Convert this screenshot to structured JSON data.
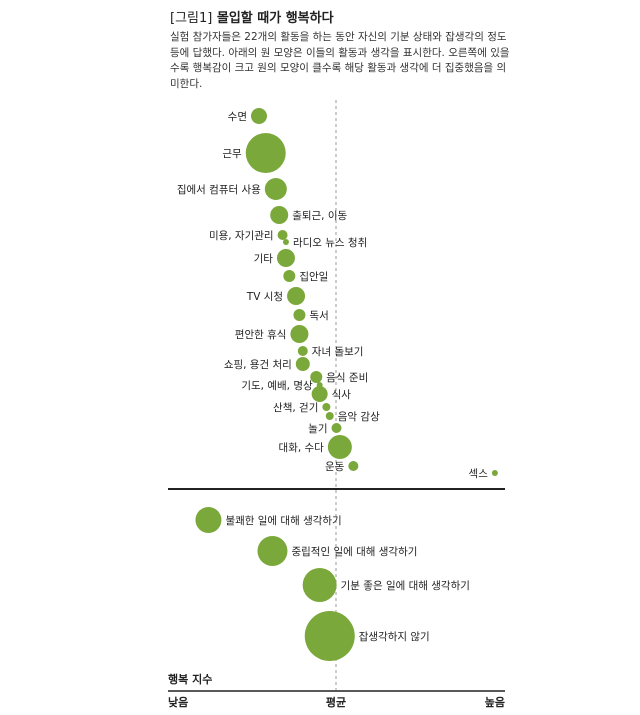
{
  "figure": {
    "prefix": "[그림1]",
    "title": "몰입할 때가 행복하다",
    "description": "실험 참가자들은 22개의 활동을 하는 동안 자신의 기분 상태와 잡생각의 정도 등에 답했다. 아래의 원 모양은 이들의 활동과 생각을 표시한다. 오른쪽에 있을수록 행복감이 크고 원의 모양이 클수록 해당 활동과 생각에 더 집중했음을 의미한다."
  },
  "colors": {
    "bubble": "#7aa83a",
    "axis": "#222222",
    "mean_line": "#999999"
  },
  "chart_data": {
    "type": "scatter",
    "x_meaning": "행복 지수",
    "x_scale": [
      "낮음",
      "평균",
      "높음"
    ],
    "activities": [
      {
        "label": "수면",
        "happiness": 0.27,
        "size": 8
      },
      {
        "label": "근무",
        "happiness": 0.29,
        "size": 20
      },
      {
        "label": "집에서 컴퓨터 사용",
        "happiness": 0.32,
        "size": 11
      },
      {
        "label": "출퇴근, 이동",
        "happiness": 0.33,
        "size": 9
      },
      {
        "label": "미용, 자기관리",
        "happiness": 0.34,
        "size": 5
      },
      {
        "label": "라디오 뉴스 청취",
        "happiness": 0.35,
        "size": 3
      },
      {
        "label": "기타",
        "happiness": 0.35,
        "size": 9
      },
      {
        "label": "집안일",
        "happiness": 0.36,
        "size": 6
      },
      {
        "label": "TV 시청",
        "happiness": 0.38,
        "size": 9
      },
      {
        "label": "독서",
        "happiness": 0.39,
        "size": 6
      },
      {
        "label": "편안한 휴식",
        "happiness": 0.39,
        "size": 9
      },
      {
        "label": "자녀 돌보기",
        "happiness": 0.4,
        "size": 5
      },
      {
        "label": "쇼핑, 용건 처리",
        "happiness": 0.4,
        "size": 7
      },
      {
        "label": "음식 준비",
        "happiness": 0.44,
        "size": 6
      },
      {
        "label": "기도, 예배, 명상",
        "happiness": 0.45,
        "size": 3
      },
      {
        "label": "식사",
        "happiness": 0.45,
        "size": 8
      },
      {
        "label": "산책, 걷기",
        "happiness": 0.47,
        "size": 4
      },
      {
        "label": "음악 감상",
        "happiness": 0.48,
        "size": 4
      },
      {
        "label": "놀기",
        "happiness": 0.5,
        "size": 5
      },
      {
        "label": "대화, 수다",
        "happiness": 0.51,
        "size": 12
      },
      {
        "label": "운동",
        "happiness": 0.55,
        "size": 5
      },
      {
        "label": "섹스",
        "happiness": 0.97,
        "size": 3
      }
    ],
    "thoughts": [
      {
        "label": "불쾌한 일에 대해 생각하기",
        "happiness": 0.12,
        "size": 13
      },
      {
        "label": "중립적인 일에 대해 생각하기",
        "happiness": 0.31,
        "size": 15
      },
      {
        "label": "기분 좋은 일에 대해 생각하기",
        "happiness": 0.45,
        "size": 17
      },
      {
        "label": "잡생각하지 않기",
        "happiness": 0.48,
        "size": 25
      }
    ]
  }
}
